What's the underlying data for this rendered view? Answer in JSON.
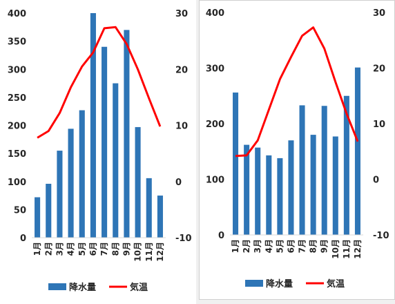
{
  "chart_data": [
    {
      "type": "bar",
      "categories": [
        "1月",
        "2月",
        "3月",
        "4月",
        "5月",
        "6月",
        "7月",
        "8月",
        "9月",
        "10月",
        "11月",
        "12月"
      ],
      "series": [
        {
          "name": "降水量",
          "type": "bar",
          "axis": "left",
          "color": "#2e75b6",
          "values": [
            72,
            96,
            155,
            194,
            227,
            400,
            340,
            275,
            370,
            197,
            106,
            75
          ]
        },
        {
          "name": "気温",
          "type": "line",
          "axis": "right",
          "color": "#ff0000",
          "values": [
            7.8,
            9.0,
            12.2,
            16.8,
            20.5,
            23.0,
            27.3,
            27.5,
            24.5,
            20.0,
            14.8,
            9.8
          ]
        }
      ],
      "y_left": {
        "min": 0,
        "max": 400,
        "ticks": [
          0,
          50,
          100,
          150,
          200,
          250,
          300,
          350,
          400
        ]
      },
      "y_right": {
        "min": -10,
        "max": 30,
        "ticks": [
          -10,
          0,
          10,
          20,
          30
        ]
      },
      "grid": false,
      "legend": "bottom",
      "legend_labels": [
        "降水量",
        "気温"
      ]
    },
    {
      "type": "bar",
      "categories": [
        "1月",
        "2月",
        "3月",
        "4月",
        "5月",
        "6月",
        "7月",
        "8月",
        "9月",
        "10月",
        "11月",
        "12月"
      ],
      "series": [
        {
          "name": "降水量",
          "type": "bar",
          "axis": "left",
          "color": "#2e75b6",
          "values": [
            256,
            162,
            157,
            143,
            138,
            170,
            233,
            180,
            232,
            177,
            250,
            301
          ]
        },
        {
          "name": "気温",
          "type": "line",
          "axis": "right",
          "color": "#ff0000",
          "values": [
            4.2,
            4.3,
            7.0,
            12.5,
            18.0,
            22.0,
            25.8,
            27.3,
            23.5,
            17.5,
            11.8,
            6.8
          ]
        }
      ],
      "y_left": {
        "min": 0,
        "max": 400,
        "ticks": [
          0,
          100,
          200,
          300,
          400
        ]
      },
      "y_right": {
        "min": -10,
        "max": 30,
        "ticks": [
          -10,
          0,
          10,
          20,
          30
        ]
      },
      "grid": false,
      "legend": "bottom",
      "legend_labels": [
        "降水量",
        "気温"
      ]
    }
  ]
}
